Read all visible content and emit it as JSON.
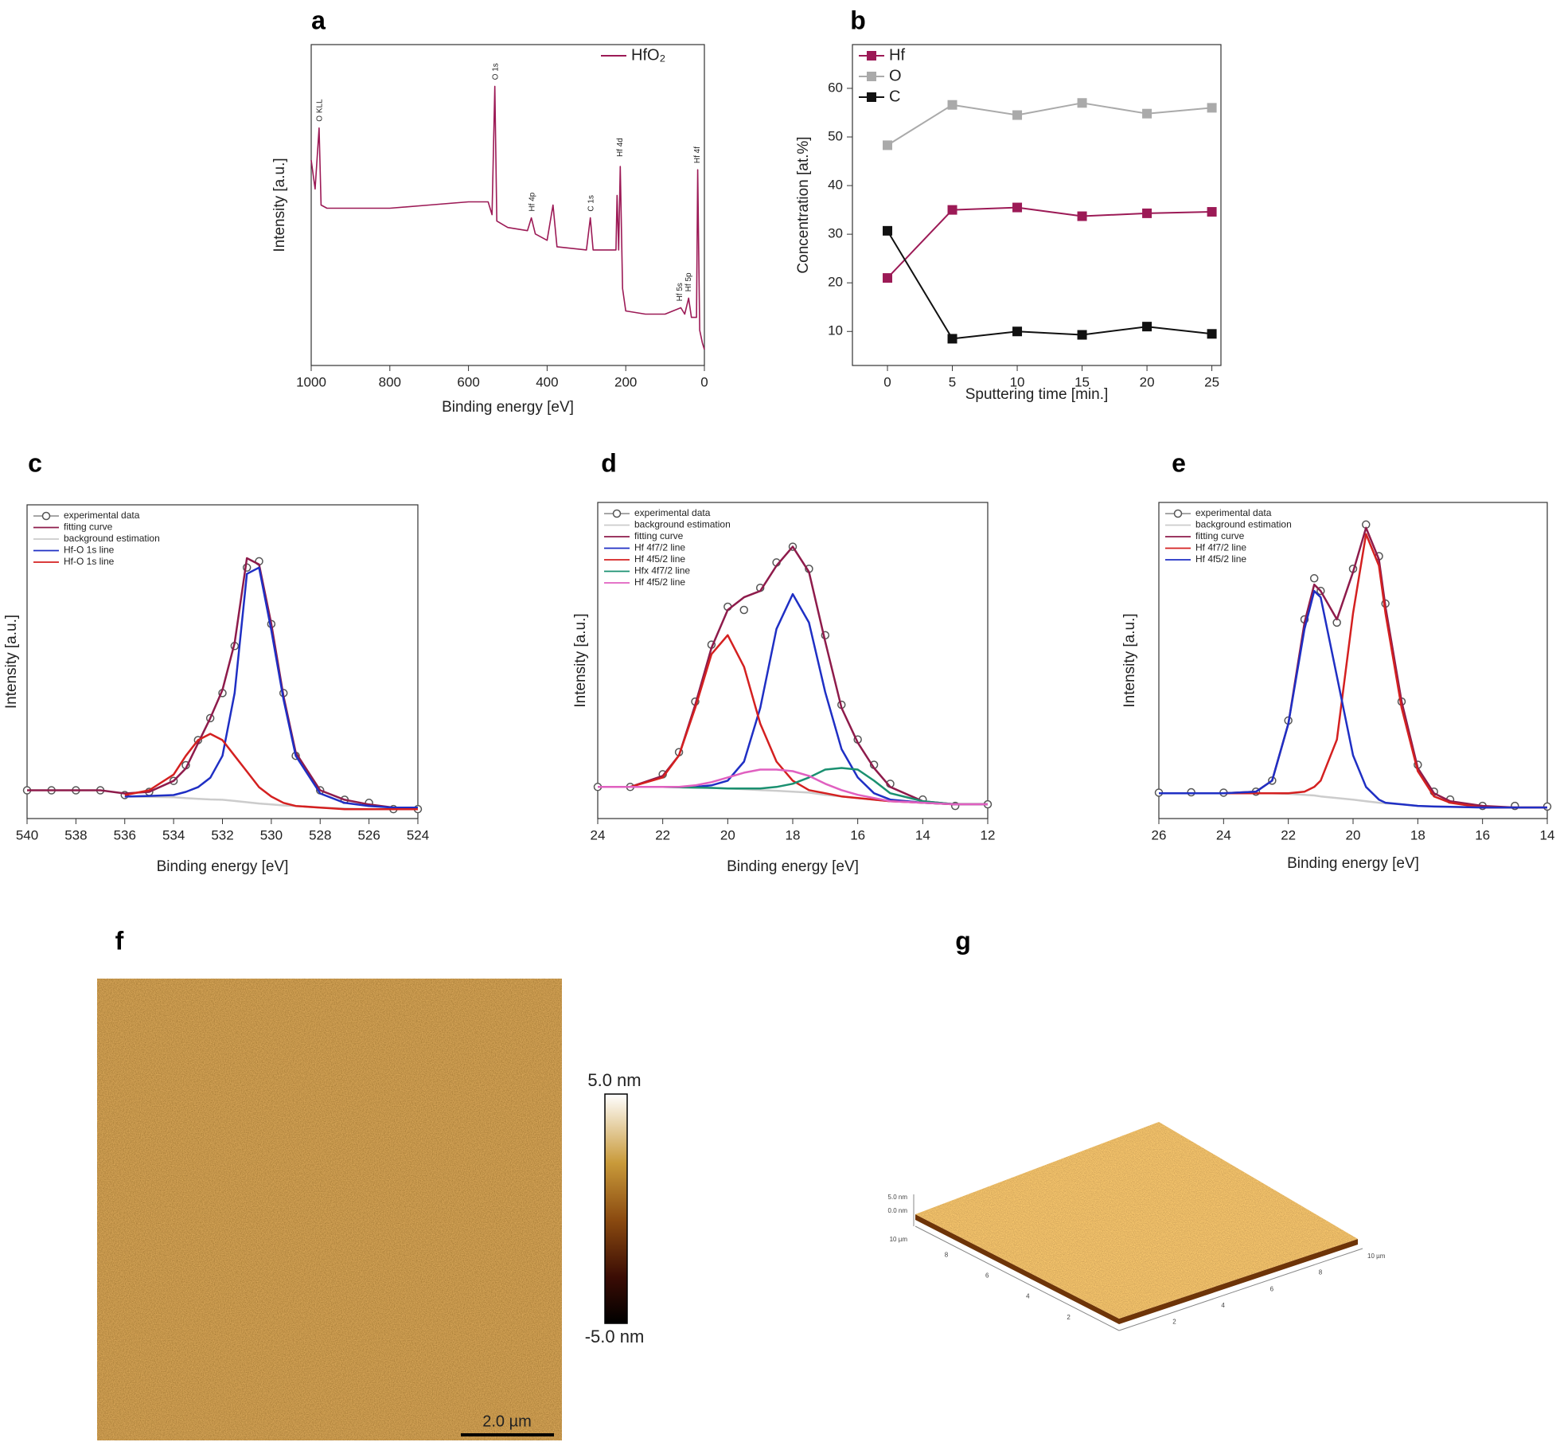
{
  "chart_data": [
    {
      "type": "line",
      "label": "a",
      "xlabel": "Binding energy [eV]",
      "ylabel": "Intensity [a.u.]",
      "legend": "upper right",
      "xlim": [
        1000,
        0
      ],
      "xticks": [
        1000,
        800,
        600,
        400,
        200,
        0
      ],
      "ylim": [
        0,
        100
      ],
      "x": [
        1000,
        990,
        980,
        975,
        960,
        900,
        800,
        700,
        600,
        550,
        540,
        533,
        528,
        500,
        450,
        440,
        430,
        400,
        385,
        375,
        300,
        290,
        283,
        250,
        225,
        222,
        218,
        214,
        208,
        200,
        150,
        100,
        60,
        50,
        40,
        33,
        20,
        17,
        12,
        5,
        0
      ],
      "series": [
        {
          "name": "HfO₂",
          "color": "#9c1a56",
          "values": [
            64,
            55,
            74,
            50,
            49,
            49,
            49,
            50,
            51,
            51,
            47,
            87,
            45,
            43,
            42,
            46,
            41,
            39,
            50,
            37,
            36,
            46,
            36,
            36,
            36,
            53,
            36,
            62,
            24,
            17,
            16,
            16,
            18,
            16,
            21,
            15,
            15,
            61,
            11,
            7,
            5
          ]
        }
      ],
      "annotations": [
        {
          "text": "O KLL",
          "x": 978,
          "y": 76
        },
        {
          "text": "O 1s",
          "x": 531,
          "y": 89
        },
        {
          "text": "Hf 4p",
          "x": 438,
          "y": 48
        },
        {
          "text": "C 1s",
          "x": 288,
          "y": 48
        },
        {
          "text": "Hf 4d",
          "x": 214,
          "y": 65
        },
        {
          "text": "Hf 5s",
          "x": 62,
          "y": 20
        },
        {
          "text": "Hf 5p",
          "x": 40,
          "y": 23
        },
        {
          "text": "Hf 4f",
          "x": 17,
          "y": 63
        }
      ]
    },
    {
      "type": "line",
      "label": "b",
      "xlabel": "Sputtering time [min.]",
      "ylabel": "Concentration [at.%]",
      "legend": "upper left",
      "xlim": [
        -2.7,
        25.7
      ],
      "xticks": [
        0,
        5,
        10,
        15,
        20,
        25
      ],
      "ylim": [
        3,
        69
      ],
      "yticks": [
        10,
        20,
        30,
        40,
        50,
        60
      ],
      "x": [
        0,
        5,
        10,
        15,
        20,
        25
      ],
      "series": [
        {
          "name": "Hf",
          "color": "#9c1a56",
          "marker": "square",
          "values": [
            21,
            35,
            35.5,
            33.7,
            34.3,
            34.6
          ]
        },
        {
          "name": "O",
          "color": "#aaaaaa",
          "marker": "square",
          "values": [
            48.3,
            56.6,
            54.5,
            57,
            54.8,
            56
          ]
        },
        {
          "name": "C",
          "color": "#111111",
          "marker": "square",
          "values": [
            30.7,
            8.5,
            10,
            9.3,
            11,
            9.5
          ]
        }
      ]
    },
    {
      "type": "line",
      "label": "c",
      "xlabel": "Binding energy [eV]",
      "ylabel": "Intensity [a.u.]",
      "legend": "upper left",
      "xlim": [
        540,
        524
      ],
      "xticks": [
        540,
        538,
        536,
        534,
        532,
        530,
        528,
        526,
        524
      ],
      "ylim": [
        0,
        100
      ],
      "x": [
        540,
        539,
        538,
        537,
        536,
        535,
        534,
        533.5,
        533,
        532.5,
        532,
        531.5,
        531,
        530.5,
        530,
        529.5,
        529,
        528,
        527,
        526,
        525,
        524
      ],
      "series": [
        {
          "name": "experimental data",
          "color": "#555555",
          "marker": "circle",
          "line": false,
          "values": [
            9,
            9,
            9,
            9,
            7.5,
            8.5,
            12,
            17,
            25,
            32,
            40,
            55,
            80,
            82,
            62,
            40,
            20,
            9,
            6,
            5,
            3,
            3
          ]
        },
        {
          "name": "fitting curve",
          "color": "#8e1b4b",
          "values": [
            9,
            9,
            9,
            9,
            8,
            8.5,
            12,
            16,
            24,
            32,
            41,
            56,
            83,
            81,
            62,
            39,
            21,
            9,
            6,
            4.5,
            3.5,
            3.5
          ]
        },
        {
          "name": "background estimation",
          "color": "#cccccc",
          "values": [
            null,
            null,
            null,
            null,
            7,
            6.9,
            6.8,
            6.5,
            6.3,
            6.1,
            6,
            5.6,
            5.2,
            4.8,
            4.5,
            4.2,
            4,
            3.5,
            3.2,
            3,
            3,
            3
          ]
        },
        {
          "name": "Hf-O 1s line",
          "color": "#1f2fc4",
          "values": [
            null,
            null,
            null,
            null,
            7,
            7.2,
            7.5,
            8.5,
            10,
            13,
            20,
            40,
            78,
            80,
            60,
            38,
            20,
            8,
            5,
            4,
            3.5,
            3.5
          ]
        },
        {
          "name": "Hf-O 1s line",
          "color": "#d42020",
          "values": [
            null,
            null,
            null,
            null,
            7.5,
            9,
            14,
            20,
            25,
            27,
            25,
            20,
            15,
            10,
            7,
            5,
            4,
            3.5,
            3,
            3,
            3,
            3
          ]
        }
      ]
    },
    {
      "type": "line",
      "label": "d",
      "xlabel": "Binding energy [eV]",
      "ylabel": "Intensity [a.u.]",
      "legend": "upper left",
      "xlim": [
        24,
        12
      ],
      "xticks": [
        24,
        22,
        20,
        18,
        16,
        14,
        12
      ],
      "ylim": [
        0,
        100
      ],
      "x": [
        24,
        23,
        22,
        21.5,
        21,
        20.5,
        20,
        19.5,
        19,
        18.5,
        18,
        17.5,
        17,
        16.5,
        16,
        15.5,
        15,
        14,
        13,
        12
      ],
      "series": [
        {
          "name": "experimental data",
          "color": "#555555",
          "marker": "circle",
          "line": false,
          "values": [
            10,
            10,
            14,
            21,
            37,
            55,
            67,
            66,
            73,
            81,
            86,
            79,
            58,
            36,
            25,
            17,
            11,
            6,
            4,
            4.5
          ]
        },
        {
          "name": "background estimation",
          "color": "#cccccc",
          "values": [
            10,
            10,
            10,
            9.9,
            9.8,
            9.7,
            9.5,
            9.3,
            9,
            8.8,
            8.5,
            8.2,
            7.5,
            7,
            6.5,
            6,
            5.5,
            5,
            4.5,
            4.5
          ]
        },
        {
          "name": "fitting curve",
          "color": "#8e1b4b",
          "values": [
            10,
            10,
            13.5,
            20,
            36,
            54,
            66,
            70,
            72,
            80,
            86,
            78,
            56,
            35,
            24,
            16,
            10,
            5.5,
            4.5,
            4.5
          ]
        },
        {
          "name": "Hf 4f7/2 line",
          "color": "#1f2fc4",
          "values": [
            10,
            10,
            10,
            10,
            10,
            10.5,
            12,
            18,
            35,
            60,
            71,
            62,
            40,
            22,
            13,
            8,
            6,
            5,
            4.5,
            4.5
          ]
        },
        {
          "name": "Hf 4f5/2 line",
          "color": "#d42020",
          "values": [
            10,
            10,
            13,
            20,
            35,
            52,
            58,
            48,
            30,
            18,
            12,
            9,
            8,
            7,
            6.5,
            6,
            5.5,
            5,
            4.5,
            4.5
          ]
        },
        {
          "name": "Hfx 4f7/2 line",
          "color": "#1a9070",
          "values": [
            10,
            10,
            10,
            9.9,
            9.8,
            9.7,
            9.5,
            9.5,
            9.5,
            10,
            11,
            13,
            15.5,
            16,
            15.5,
            12,
            8,
            5.5,
            4.5,
            4.5
          ]
        },
        {
          "name": "Hf 4f5/2 line",
          "color": "#e060c0",
          "values": [
            10,
            10,
            10,
            10,
            10.5,
            11.5,
            13,
            14.5,
            15.5,
            15.5,
            15,
            13.5,
            11,
            9,
            7.5,
            6.5,
            5.5,
            5,
            4.5,
            4.5
          ]
        }
      ]
    },
    {
      "type": "line",
      "label": "e",
      "xlabel": "Binding energy [eV]",
      "ylabel": "Intensity [a.u.]",
      "legend": "upper left",
      "xlim": [
        26,
        14
      ],
      "xticks": [
        26,
        24,
        22,
        20,
        18,
        16,
        14
      ],
      "ylim": [
        0,
        100
      ],
      "x": [
        26,
        25,
        24,
        23,
        22.5,
        22,
        21.5,
        21.2,
        21,
        20.5,
        20,
        19.6,
        19.2,
        19,
        18.5,
        18,
        17.5,
        17,
        16,
        15,
        14
      ],
      "series": [
        {
          "name": "experimental data",
          "color": "#555555",
          "marker": "circle",
          "line": false,
          "values": [
            8.2,
            8.3,
            8.2,
            8.5,
            12,
            31,
            63,
            76,
            72,
            62,
            79,
            93,
            83,
            68,
            37,
            17,
            8.5,
            6,
            4,
            4,
            3.8
          ]
        },
        {
          "name": "background estimation",
          "color": "#cccccc",
          "values": [
            8,
            8,
            8,
            8,
            8,
            7.8,
            7.5,
            7.3,
            7,
            6.5,
            6,
            5.5,
            5,
            4.8,
            4.5,
            4,
            3.8,
            3.7,
            3.5,
            3.5,
            3.5
          ]
        },
        {
          "name": "fitting curve",
          "color": "#8e1b4b",
          "values": [
            8,
            8,
            8,
            8.5,
            12,
            30,
            62,
            74,
            72,
            63,
            78,
            92,
            82,
            67,
            37,
            16,
            8,
            5.5,
            4,
            3.5,
            3.5
          ]
        },
        {
          "name": "Hf 4f7/2 line",
          "color": "#d42020",
          "values": [
            8,
            8,
            8,
            8,
            8,
            8,
            8.5,
            10,
            12,
            25,
            65,
            90,
            80,
            65,
            35,
            15,
            7,
            5,
            3.5,
            3.5,
            3.5
          ]
        },
        {
          "name": "Hf 4f5/2 line",
          "color": "#1f2fc4",
          "values": [
            8,
            8,
            8,
            8.5,
            12,
            30,
            60,
            72,
            70,
            45,
            20,
            10,
            6,
            5,
            4.5,
            4,
            3.8,
            3.7,
            3.5,
            3.5,
            3.5
          ]
        }
      ]
    }
  ],
  "afm_map": {
    "label": "f",
    "colorbar_max": "5.0 nm",
    "colorbar_min": "-5.0 nm",
    "scale_bar": "2.0 µm"
  },
  "afm_3d": {
    "label": "g",
    "z_labels": [
      "5.0 nm",
      "0.0 nm",
      "10 µm"
    ],
    "y_tick_labels": [
      "8",
      "6",
      "4",
      "2"
    ],
    "x_tick_labels": [
      "2",
      "4",
      "6",
      "8",
      "10 µm"
    ]
  }
}
